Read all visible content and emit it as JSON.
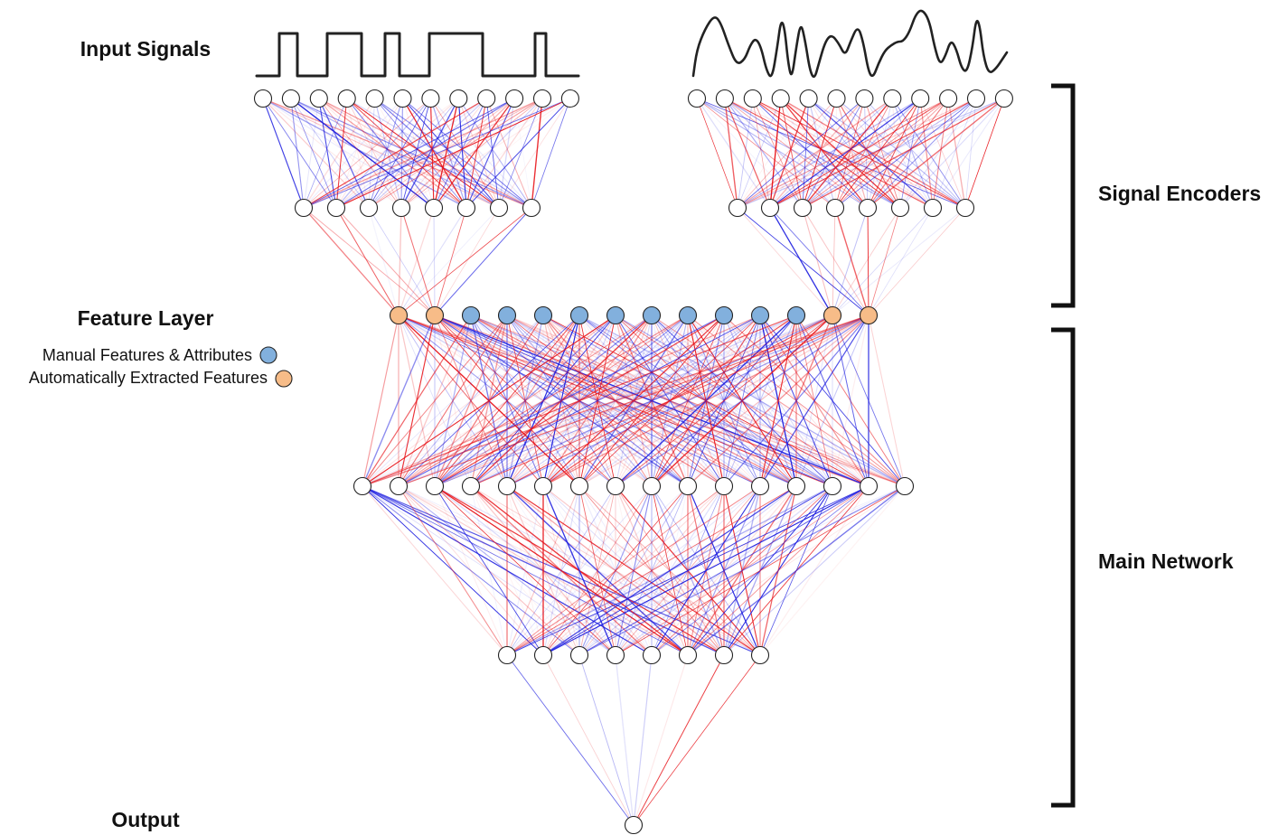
{
  "labels": {
    "input_signals": "Input Signals",
    "feature_layer": "Feature Layer",
    "output": "Output",
    "signal_encoders": "Signal Encoders",
    "main_network": "Main Network"
  },
  "legend": [
    {
      "text": "Manual Features & Attributes",
      "color": "#82b0dd"
    },
    {
      "text": "Automatically Extracted Features",
      "color": "#f7bc88"
    }
  ],
  "colors": {
    "positive_weight": "#e8141a",
    "negative_weight": "#2020e0",
    "node_default": "#ffffff",
    "node_manual": "#82b0dd",
    "node_auto": "#f7bc88"
  },
  "network": {
    "encoders": [
      {
        "input_nodes": 12,
        "hidden_nodes": 8,
        "outputs_to_feature_nodes": 2
      },
      {
        "input_nodes": 12,
        "hidden_nodes": 8,
        "outputs_to_feature_nodes": 2
      }
    ],
    "feature_layer": [
      "auto",
      "auto",
      "manual",
      "manual",
      "manual",
      "manual",
      "manual",
      "manual",
      "manual",
      "manual",
      "manual",
      "manual",
      "auto",
      "auto"
    ],
    "hidden_1_nodes": 16,
    "hidden_2_nodes": 8,
    "output_nodes": 1
  }
}
